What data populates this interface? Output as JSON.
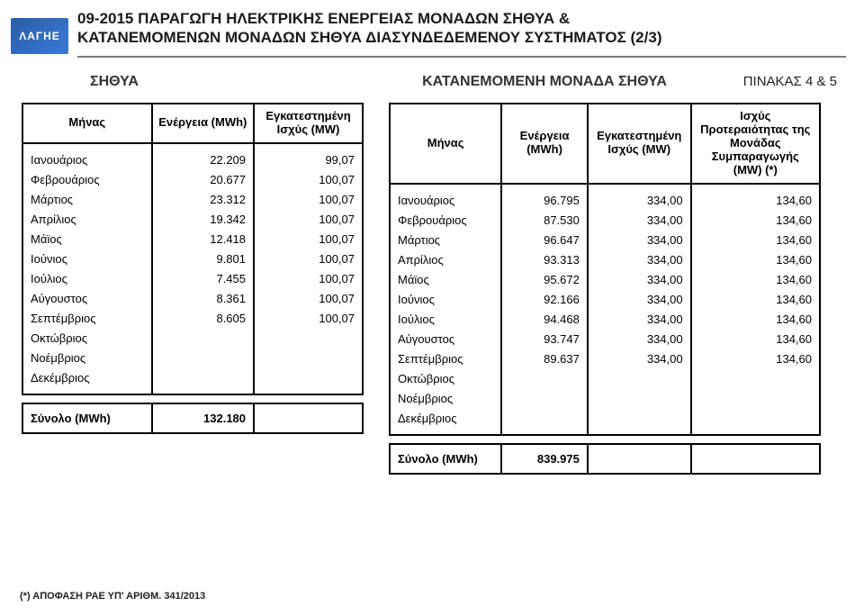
{
  "logo_text": "ΛΑΓΗΕ",
  "title_line1": "09-2015 ΠΑΡΑΓΩΓΗ ΗΛΕΚΤΡΙΚΗΣ ΕΝΕΡΓΕΙΑΣ ΜΟΝΑΔΩΝ ΣΗΘΥΑ &",
  "title_line2": "ΚΑΤΑΝΕΜΟΜΕΝΩΝ ΜΟΝΑΔΩΝ ΣΗΘΥΑ ΔΙΑΣΥΝΔΕΔΕΜΕΝΟΥ ΣΥΣΤΗΜΑΤΟΣ (2/3)",
  "subtitle_left": "ΣΗΘΥΑ",
  "subtitle_center": "ΚΑΤΑΝΕΜΟΜΕΝΗ ΜΟΝΑΔΑ ΣΗΘΥΑ",
  "subtitle_right": "ΠΙΝΑΚΑΣ 4 & 5",
  "t1": {
    "headers": [
      "Μήνας",
      "Ενέργεια (MWh)",
      "Εγκατεστημένη Ισχύς (MW)"
    ],
    "col_widths": [
      "38%",
      "30%",
      "32%"
    ],
    "rows": [
      [
        "Ιανουάριος",
        "22.209",
        "99,07"
      ],
      [
        "Φεβρουάριος",
        "20.677",
        "100,07"
      ],
      [
        "Μάρτιος",
        "23.312",
        "100,07"
      ],
      [
        "Απρίλιος",
        "19.342",
        "100,07"
      ],
      [
        "Μάϊος",
        "12.418",
        "100,07"
      ],
      [
        "Ιούνιος",
        "9.801",
        "100,07"
      ],
      [
        "Ιούλιος",
        "7.455",
        "100,07"
      ],
      [
        "Αύγουστος",
        "8.361",
        "100,07"
      ],
      [
        "Σεπτέμβριος",
        "8.605",
        "100,07"
      ],
      [
        "Οκτώβριος",
        "",
        ""
      ],
      [
        "Νοέμβριος",
        "",
        ""
      ],
      [
        "Δεκέμβριος",
        "",
        ""
      ]
    ],
    "total_label": "Σύνολο (MWh)",
    "total_value": "132.180"
  },
  "t2": {
    "headers": [
      "Μήνας",
      "Ενέργεια (MWh)",
      "Εγκατεστημένη Ισχύς (MW)",
      "Ισχύς Προτεραιότητας της Μονάδας Συμπαραγωγής (MW) (*)"
    ],
    "col_widths": [
      "26%",
      "20%",
      "24%",
      "30%"
    ],
    "rows": [
      [
        "Ιανουάριος",
        "96.795",
        "334,00",
        "134,60"
      ],
      [
        "Φεβρουάριος",
        "87.530",
        "334,00",
        "134,60"
      ],
      [
        "Μάρτιος",
        "96.647",
        "334,00",
        "134,60"
      ],
      [
        "Απρίλιος",
        "93.313",
        "334,00",
        "134,60"
      ],
      [
        "Μάϊος",
        "95.672",
        "334,00",
        "134,60"
      ],
      [
        "Ιούνιος",
        "92.166",
        "334,00",
        "134,60"
      ],
      [
        "Ιούλιος",
        "94.468",
        "334,00",
        "134,60"
      ],
      [
        "Αύγουστος",
        "93.747",
        "334,00",
        "134,60"
      ],
      [
        "Σεπτέμβριος",
        "89.637",
        "334,00",
        "134,60"
      ],
      [
        "Οκτώβριος",
        "",
        "",
        ""
      ],
      [
        "Νοέμβριος",
        "",
        "",
        ""
      ],
      [
        "Δεκέμβριος",
        "",
        "",
        ""
      ]
    ],
    "total_label": "Σύνολο (MWh)",
    "total_value": "839.975"
  },
  "footnote": "(*) ΑΠΟΦΑΣΗ ΡΑΕ ΥΠ' ΑΡΙΘΜ. 341/2013",
  "colors": {
    "border": "#000000",
    "text": "#1a1a1a",
    "underline": "#7a7a7a",
    "logo_bg_from": "#2a5caa",
    "logo_bg_to": "#3a7bd5"
  },
  "typography": {
    "title_fontsize": 17,
    "subtitle_fontsize": 16,
    "table_fontsize": 13,
    "footnote_fontsize": 11,
    "font_family": "Arial"
  }
}
